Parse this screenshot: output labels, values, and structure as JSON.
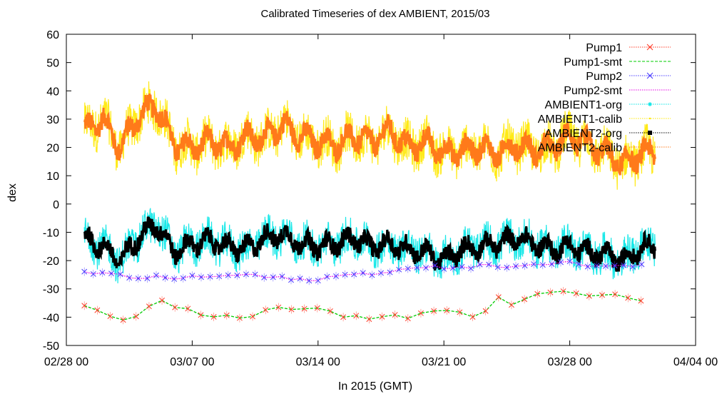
{
  "chart_data": {
    "type": "line",
    "title": "Calibrated Timeseries of dex AMBIENT, 2015/03",
    "xlabel": "In 2015 (GMT)",
    "ylabel": "dex",
    "ylim": [
      -50,
      60
    ],
    "yticks": [
      -50,
      -40,
      -30,
      -20,
      -10,
      0,
      10,
      20,
      30,
      40,
      50,
      60
    ],
    "xlim": [
      "2015-02-28 00:00",
      "2015-04-04 00:00"
    ],
    "xticks": [
      {
        "label": "02/28 00",
        "date": "2015-02-28"
      },
      {
        "label": "03/07 00",
        "date": "2015-03-07"
      },
      {
        "label": "03/14 00",
        "date": "2015-03-14"
      },
      {
        "label": "03/21 00",
        "date": "2015-03-21"
      },
      {
        "label": "03/28 00",
        "date": "2015-03-28"
      },
      {
        "label": "04/04 00",
        "date": "2015-04-04"
      }
    ],
    "legend_position": "top-right",
    "series": [
      {
        "name": "Pump1",
        "color": "#ff3c28",
        "marker": "x",
        "points": [
          [
            "2015-03-01",
            -36
          ],
          [
            "2015-03-02",
            -39
          ],
          [
            "2015-03-03",
            -41
          ],
          [
            "2015-03-04",
            -39
          ],
          [
            "2015-03-05",
            -33
          ],
          [
            "2015-03-06",
            -36
          ],
          [
            "2015-03-07",
            -37
          ],
          [
            "2015-03-08",
            -40
          ],
          [
            "2015-03-09",
            -39
          ],
          [
            "2015-03-10",
            -40
          ],
          [
            "2015-03-11",
            -38
          ],
          [
            "2015-03-12",
            -36
          ],
          [
            "2015-03-13",
            -38
          ],
          [
            "2015-03-14",
            -36
          ],
          [
            "2015-03-15",
            -39
          ],
          [
            "2015-03-16",
            -40
          ],
          [
            "2015-03-17",
            -40
          ],
          [
            "2015-03-18",
            -39
          ],
          [
            "2015-03-19",
            -40
          ],
          [
            "2015-03-20",
            -39
          ],
          [
            "2015-03-21",
            -37
          ],
          [
            "2015-03-22",
            -39
          ],
          [
            "2015-03-23",
            -40
          ],
          [
            "2015-03-24",
            -33
          ],
          [
            "2015-03-25",
            -36
          ],
          [
            "2015-03-26",
            -31
          ],
          [
            "2015-03-27",
            -32
          ],
          [
            "2015-03-28",
            -31
          ],
          [
            "2015-03-29",
            -33
          ],
          [
            "2015-03-30",
            -32
          ],
          [
            "2015-03-31",
            -33
          ],
          [
            "2015-04-01",
            -34
          ]
        ],
        "step_days": 0.72
      },
      {
        "name": "Pump1-smt",
        "color": "#00cc00",
        "style": "dashed"
      },
      {
        "name": "Pump2",
        "color": "#4a3cff",
        "marker": "x",
        "points": [
          [
            "2015-03-01",
            -24
          ],
          [
            "2015-03-04",
            -26
          ],
          [
            "2015-03-07",
            -26
          ],
          [
            "2015-03-10",
            -25
          ],
          [
            "2015-03-13",
            -27
          ],
          [
            "2015-03-16",
            -25
          ],
          [
            "2015-03-19",
            -23
          ],
          [
            "2015-03-22",
            -22
          ],
          [
            "2015-03-25",
            -22
          ],
          [
            "2015-03-28",
            -21
          ],
          [
            "2015-03-31",
            -22
          ],
          [
            "2015-04-01",
            -21
          ]
        ],
        "step_days": 0.5
      },
      {
        "name": "Pump2-smt",
        "color": "#e600e6",
        "style": "dotted"
      },
      {
        "name": "AMBIENT1-org",
        "color": "#00e5e5",
        "marker": "star"
      },
      {
        "name": "AMBIENT1-calib",
        "color": "#ffe800",
        "marker": "dot"
      },
      {
        "name": "AMBIENT2-org",
        "color": "#000000",
        "marker": "square"
      },
      {
        "name": "AMBIENT2-calib",
        "color": "#ff7a1a",
        "marker": "circle"
      }
    ],
    "ambient_calib_mean": [
      [
        "2015-03-01",
        26
      ],
      [
        "2015-03-02",
        30
      ],
      [
        "2015-03-03",
        20
      ],
      [
        "2015-03-04",
        31
      ],
      [
        "2015-03-05",
        35
      ],
      [
        "2015-03-06",
        21
      ],
      [
        "2015-03-07",
        20
      ],
      [
        "2015-03-08",
        22
      ],
      [
        "2015-03-09",
        20
      ],
      [
        "2015-03-10",
        24
      ],
      [
        "2015-03-11",
        23
      ],
      [
        "2015-03-12",
        28
      ],
      [
        "2015-03-13",
        24
      ],
      [
        "2015-03-14",
        22
      ],
      [
        "2015-03-15",
        21
      ],
      [
        "2015-03-16",
        24
      ],
      [
        "2015-03-17",
        22
      ],
      [
        "2015-03-18",
        26
      ],
      [
        "2015-03-19",
        20
      ],
      [
        "2015-03-20",
        22
      ],
      [
        "2015-03-21",
        18
      ],
      [
        "2015-03-22",
        19
      ],
      [
        "2015-03-23",
        20
      ],
      [
        "2015-03-24",
        18
      ],
      [
        "2015-03-25",
        21
      ],
      [
        "2015-03-26",
        19
      ],
      [
        "2015-03-27",
        20
      ],
      [
        "2015-03-28",
        24
      ],
      [
        "2015-03-29",
        21
      ],
      [
        "2015-03-30",
        18
      ],
      [
        "2015-03-31",
        14
      ],
      [
        "2015-04-01",
        18
      ]
    ],
    "ambient_org_mean": [
      [
        "2015-03-01",
        -12
      ],
      [
        "2015-03-02",
        -15
      ],
      [
        "2015-03-03",
        -20
      ],
      [
        "2015-03-04",
        -12
      ],
      [
        "2015-03-05",
        -7
      ],
      [
        "2015-03-06",
        -17
      ],
      [
        "2015-03-07",
        -14
      ],
      [
        "2015-03-08",
        -13
      ],
      [
        "2015-03-09",
        -15
      ],
      [
        "2015-03-10",
        -16
      ],
      [
        "2015-03-11",
        -12
      ],
      [
        "2015-03-12",
        -11
      ],
      [
        "2015-03-13",
        -14
      ],
      [
        "2015-03-14",
        -15
      ],
      [
        "2015-03-15",
        -14
      ],
      [
        "2015-03-16",
        -12
      ],
      [
        "2015-03-17",
        -15
      ],
      [
        "2015-03-18",
        -14
      ],
      [
        "2015-03-19",
        -16
      ],
      [
        "2015-03-20",
        -17
      ],
      [
        "2015-03-21",
        -20
      ],
      [
        "2015-03-22",
        -16
      ],
      [
        "2015-03-23",
        -15
      ],
      [
        "2015-03-24",
        -14
      ],
      [
        "2015-03-25",
        -12
      ],
      [
        "2015-03-26",
        -14
      ],
      [
        "2015-03-27",
        -16
      ],
      [
        "2015-03-28",
        -15
      ],
      [
        "2015-03-29",
        -17
      ],
      [
        "2015-03-30",
        -18
      ],
      [
        "2015-03-31",
        -20
      ],
      [
        "2015-04-01",
        -15
      ]
    ],
    "ambient_end": "2015-04-01 18:00"
  }
}
